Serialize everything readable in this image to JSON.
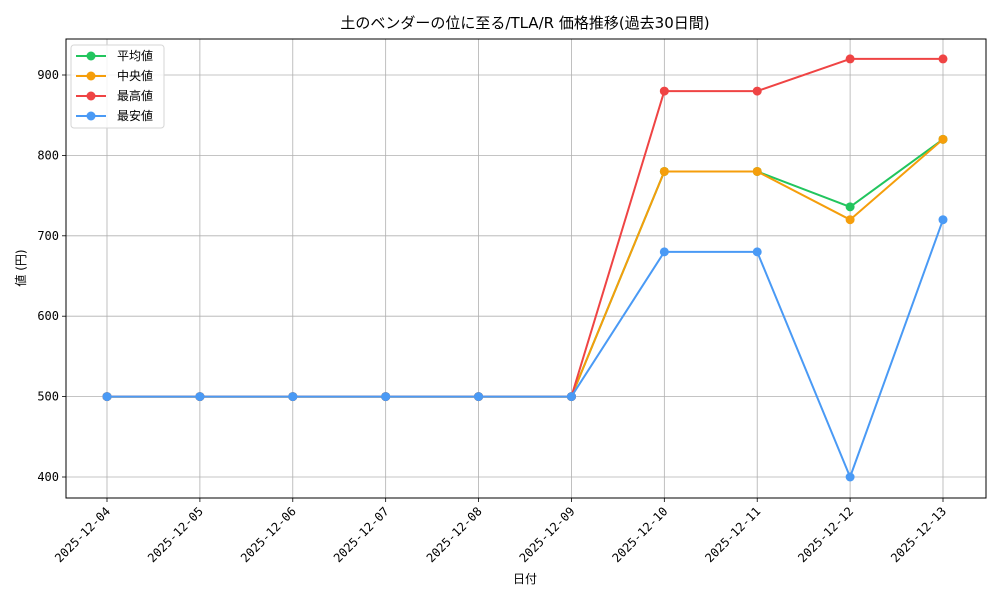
{
  "chart_data": {
    "type": "line",
    "title": "土のベンダーの位に至る/TLA/R 価格推移(過去30日間)",
    "xlabel": "日付",
    "ylabel": "値 (円)",
    "categories": [
      "2025-12-04",
      "2025-12-05",
      "2025-12-06",
      "2025-12-07",
      "2025-12-08",
      "2025-12-09",
      "2025-12-10",
      "2025-12-11",
      "2025-12-12",
      "2025-12-13"
    ],
    "series": [
      {
        "name": "平均値",
        "color": "#22c55e",
        "values": [
          500,
          500,
          500,
          500,
          500,
          500,
          780,
          780,
          736,
          820
        ]
      },
      {
        "name": "中央値",
        "color": "#f59e0b",
        "values": [
          500,
          500,
          500,
          500,
          500,
          500,
          780,
          780,
          720,
          820
        ]
      },
      {
        "name": "最高値",
        "color": "#ef4444",
        "values": [
          500,
          500,
          500,
          500,
          500,
          500,
          880,
          880,
          920,
          920
        ]
      },
      {
        "name": "最安値",
        "color": "#4a9af5",
        "values": [
          500,
          500,
          500,
          500,
          500,
          500,
          680,
          680,
          400,
          720
        ]
      }
    ],
    "yticks": [
      400,
      500,
      600,
      700,
      800,
      900
    ],
    "ylim": [
      375,
      945
    ],
    "grid": true,
    "legend_position": "upper left",
    "xtick_rotation": 45
  }
}
